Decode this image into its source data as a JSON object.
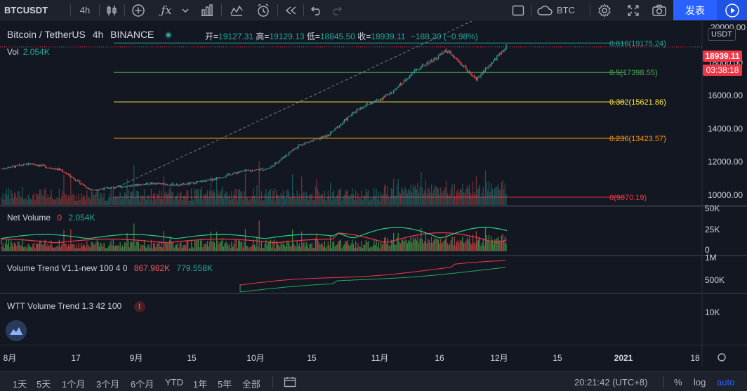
{
  "toolbar": {
    "symbol": "BTCUSDT",
    "interval": "4h",
    "compare_label": "BTC",
    "publish_label": "发表"
  },
  "legend": {
    "pair": "Bitcoin / TetherUS",
    "interval": "4h",
    "exchange": "BINANCE",
    "open_label": "开=",
    "open": "19127.31",
    "high_label": "高=",
    "high": "19129.13",
    "low_label": "低=",
    "low": "18845.50",
    "close_label": "收=",
    "close": "18939.11",
    "change": "−188.20 (−0.98%)",
    "vol_label": "Vol",
    "vol_value": "2.054K"
  },
  "indicators": {
    "net_volume": {
      "name": "Net Volume",
      "v1": "0",
      "v2": "2.054K"
    },
    "volume_trend": {
      "name": "Volume Trend V1.1-new 100 4 0",
      "v1": "867.982K",
      "v2": "779.558K"
    },
    "wtt": {
      "name": "WTT Volume Trend 1.3 42 100",
      "badge": "!"
    }
  },
  "price_axis": {
    "currency": "USDT",
    "last_price": "18939.11",
    "countdown": "03:38:18",
    "top_clipped": "20000.00"
  },
  "sub_axes": {
    "net_volume": [
      "50K",
      "25K",
      "0"
    ],
    "volume_trend": [
      "1M",
      "500K"
    ],
    "wtt": [
      "10K"
    ]
  },
  "bottom_bar": {
    "ranges": [
      "1天",
      "5天",
      "1个月",
      "3个月",
      "6个月",
      "YTD",
      "1年",
      "5年",
      "全部"
    ],
    "clock": "20:21:42 (UTC+8)",
    "percent": "%",
    "log": "log",
    "auto": "auto"
  },
  "colors": {
    "up": "#26a69a",
    "down": "#ef5350",
    "fib_0618": "#26a69a",
    "fib_05": "#4caf50",
    "fib_0382": "#ffeb3b",
    "fib_0236": "#ff9800",
    "fib_0": "#f23645"
  },
  "chart_data": {
    "type": "candlestick",
    "symbol": "BTCUSDT",
    "ylim": [
      9400,
      20500
    ],
    "y_ticks": [
      10000,
      12000,
      14000,
      16000,
      18000
    ],
    "x_ticks": [
      "8月",
      "17",
      "9月",
      "15",
      "10月",
      "15",
      "11月",
      "16",
      "12月",
      "15",
      "2021",
      "18"
    ],
    "fib_levels": [
      {
        "level": "0.618",
        "price": 19175.24,
        "label": "0.618(19175.24)"
      },
      {
        "level": "0.5",
        "price": 17398.55,
        "label": "0.5(17398.55)"
      },
      {
        "level": "0.382",
        "price": 15621.86,
        "label": "0.382(15621.86)"
      },
      {
        "level": "0.236",
        "price": 13423.57,
        "label": "0.236(13423.57)"
      },
      {
        "level": "0",
        "price": 9870.19,
        "label": "0(9870.19)"
      }
    ],
    "close_path": [
      [
        "8月",
        11600
      ],
      [
        "17",
        11900
      ],
      [
        "9月",
        11500
      ],
      [
        "",
        10300
      ],
      [
        "15",
        10500
      ],
      [
        "",
        10700
      ],
      [
        "10月",
        10600
      ],
      [
        "",
        10900
      ],
      [
        "15",
        11400
      ],
      [
        "",
        11600
      ],
      [
        "",
        13000
      ],
      [
        "11月",
        13600
      ],
      [
        "",
        15200
      ],
      [
        "16",
        16000
      ],
      [
        "",
        17600
      ],
      [
        "",
        18700
      ],
      [
        "",
        17000
      ],
      [
        "12月",
        18939.11
      ]
    ]
  }
}
